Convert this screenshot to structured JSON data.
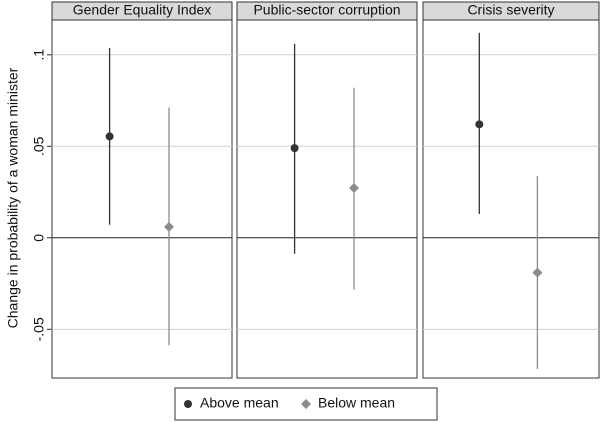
{
  "chart_data": [
    {
      "type": "errorbar",
      "title": "Gender Equality Index",
      "ylabel": "Change in probability of a woman minister",
      "ylim": [
        -0.0766,
        0.119
      ],
      "yticks": [
        {
          "value": -0.05,
          "label": "-.05"
        },
        0,
        {
          "value": 0.05,
          "label": ".05"
        },
        {
          "value": 0.1,
          "label": ".1"
        }
      ],
      "grid": true,
      "series": [
        {
          "name": "Above mean",
          "color": "#333333",
          "marker": "circle",
          "values": [
            0.0554
          ],
          "lower": [
            0.0071
          ],
          "upper": [
            0.1038
          ]
        },
        {
          "name": "Below mean",
          "color": "#8c8c8c",
          "marker": "diamond",
          "values": [
            0.006
          ],
          "lower": [
            -0.0587
          ],
          "upper": [
            0.0712
          ]
        }
      ]
    },
    {
      "type": "errorbar",
      "title": "Public-sector corruption",
      "series": [
        {
          "name": "Above mean",
          "color": "#333333",
          "marker": "circle",
          "values": [
            0.049
          ],
          "lower": [
            -0.0087
          ],
          "upper": [
            0.106
          ]
        },
        {
          "name": "Below mean",
          "color": "#8c8c8c",
          "marker": "diamond",
          "values": [
            0.0272
          ],
          "lower": [
            -0.0283
          ],
          "upper": [
            0.082
          ]
        }
      ]
    },
    {
      "type": "errorbar",
      "title": "Crisis severity",
      "series": [
        {
          "name": "Above mean",
          "color": "#333333",
          "marker": "circle",
          "values": [
            0.062
          ],
          "lower": [
            0.013
          ],
          "upper": [
            0.112
          ]
        },
        {
          "name": "Below mean",
          "color": "#8c8c8c",
          "marker": "diamond",
          "values": [
            -0.019
          ],
          "lower": [
            -0.0717
          ],
          "upper": [
            0.0337
          ]
        }
      ]
    }
  ]
}
